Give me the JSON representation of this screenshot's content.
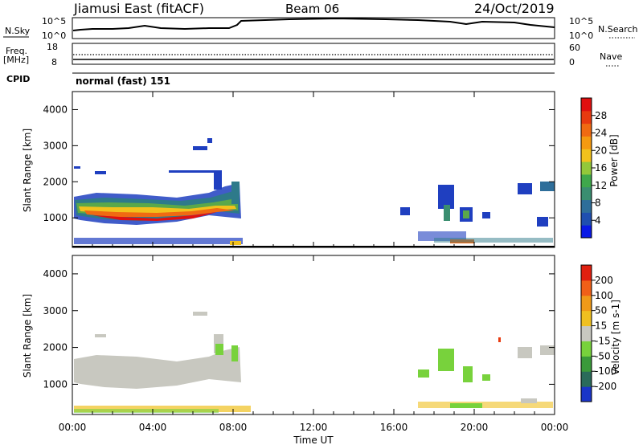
{
  "header": {
    "station": "Jiamusi East (fitACF)",
    "beam": "Beam 06",
    "date": "24/Oct/2019"
  },
  "top_panels": {
    "nsky_label": "N.Sky",
    "nsky_ticks": [
      "10^5",
      "10^0"
    ],
    "nsearch_label": "N.Search",
    "nsearch_ticks": [
      "10^5",
      "10^0"
    ],
    "freq_label": [
      "Freq.",
      "[MHz]"
    ],
    "freq_ticks": [
      "18",
      "8"
    ],
    "nave_label": "Nave",
    "nave_ticks": [
      "60",
      "0"
    ],
    "cpid_label": "CPID",
    "cpid_value": "normal (fast) 151"
  },
  "chart_data": [
    {
      "type": "heatmap",
      "name": "power-panel",
      "ylabel": "Slant Range [km]",
      "yticks": [
        "4000",
        "3000",
        "2000",
        "1000"
      ],
      "ylim": [
        180,
        4500
      ],
      "xlim": [
        0,
        24
      ],
      "colorbar_label": "Power [dB]",
      "colorbar_ticks": [
        "28",
        "24",
        "20",
        "16",
        "12",
        "8",
        "4"
      ],
      "colorbar_colors": [
        "#0a19e6",
        "#1f4fb0",
        "#2e6e9a",
        "#3a8e70",
        "#3fa84b",
        "#93c83a",
        "#f2c21c",
        "#f59a10",
        "#f06a12",
        "#e83a10",
        "#e01010"
      ],
      "regions": [
        {
          "x": [
            0.2,
            7.8
          ],
          "y": [
            950,
            1550
          ],
          "level": "high"
        },
        {
          "x": [
            7.2,
            8.2
          ],
          "y": [
            1000,
            2000
          ],
          "level": "mid"
        },
        {
          "x": [
            18.0,
            19.8
          ],
          "y": [
            800,
            1900
          ],
          "level": "mid"
        },
        {
          "x": [
            22.5,
            24.0
          ],
          "y": [
            1700,
            2000
          ],
          "level": "low"
        }
      ]
    },
    {
      "type": "heatmap",
      "name": "velocity-panel",
      "ylabel": "Slant Range [km]",
      "yticks": [
        "4000",
        "3000",
        "2000",
        "1000"
      ],
      "ylim": [
        180,
        4500
      ],
      "xlim": [
        0,
        24
      ],
      "xticks": [
        "00:00",
        "04:00",
        "08:00",
        "12:00",
        "16:00",
        "20:00",
        "00:00"
      ],
      "xlabel": "Time UT",
      "colorbar_label": "Velocity [m s-1]",
      "colorbar_ticks": [
        "200",
        "100",
        "50",
        "15",
        "-15",
        "-50",
        "-100",
        "-200"
      ],
      "colorbar_colors": [
        "#1a35c8",
        "#2a6b5a",
        "#3a9a3a",
        "#78d23c",
        "#c8c8c0",
        "#f0c020",
        "#f09a18",
        "#f06018",
        "#e02010"
      ]
    }
  ]
}
